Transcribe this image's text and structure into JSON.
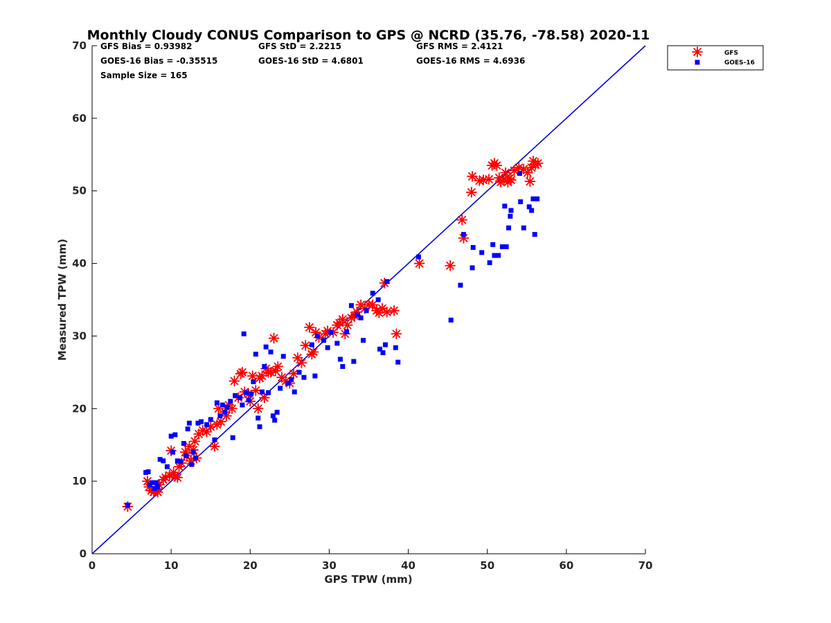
{
  "chart_data": {
    "type": "scatter",
    "title": "Monthly Cloudy CONUS Comparison to GPS @ NCRD (35.76, -78.58) 2020-11",
    "xlabel": "GPS TPW (mm)",
    "ylabel": "Measured TPW (mm)",
    "xlim": [
      0,
      70
    ],
    "ylim": [
      0,
      70
    ],
    "xticks": [
      "0",
      "10",
      "20",
      "30",
      "40",
      "50",
      "60",
      "70"
    ],
    "yticks": [
      "0",
      "10",
      "20",
      "30",
      "40",
      "50",
      "60",
      "70"
    ],
    "grid": false,
    "legend_position": "top-right, outside plot area",
    "stats": [
      [
        "GFS Bias = 0.93982",
        "GFS StD = 2.2215",
        "GFS RMS = 2.4121"
      ],
      [
        "GOES-16 Bias = -0.35515",
        "GOES-16 StD = 4.6801",
        "GOES-16 RMS = 4.6936"
      ],
      [
        "Sample Size = 165"
      ]
    ],
    "reference_line": {
      "x": [
        0,
        70
      ],
      "y": [
        0,
        70
      ],
      "color": "#0000dd"
    },
    "series": [
      {
        "name": "GFS",
        "marker": "asterisk",
        "color": "#ff0000",
        "points": [
          [
            4.5,
            6.5
          ],
          [
            7,
            10
          ],
          [
            7.2,
            9.2
          ],
          [
            7.5,
            8.7
          ],
          [
            7.8,
            8.5
          ],
          [
            8,
            8.8
          ],
          [
            8.3,
            8.5
          ],
          [
            8.5,
            9.5
          ],
          [
            9,
            10.2
          ],
          [
            9.3,
            10.5
          ],
          [
            9.8,
            10.8
          ],
          [
            10,
            14.2
          ],
          [
            10.3,
            11.2
          ],
          [
            10.5,
            10.7
          ],
          [
            10.8,
            10.5
          ],
          [
            11,
            12
          ],
          [
            11.3,
            12.5
          ],
          [
            11.8,
            14
          ],
          [
            12,
            13.5
          ],
          [
            12.3,
            14.8
          ],
          [
            12.5,
            12.8
          ],
          [
            12.8,
            14.3
          ],
          [
            13,
            15.5
          ],
          [
            13.2,
            13.2
          ],
          [
            13.5,
            16.5
          ],
          [
            14,
            17
          ],
          [
            14.5,
            16.8
          ],
          [
            15,
            17.5
          ],
          [
            15.5,
            14.8
          ],
          [
            15.8,
            17.8
          ],
          [
            16,
            20
          ],
          [
            16.3,
            18.2
          ],
          [
            16.8,
            19.5
          ],
          [
            17,
            19
          ],
          [
            17.3,
            20.5
          ],
          [
            17.7,
            20
          ],
          [
            18,
            23.8
          ],
          [
            18.5,
            21.5
          ],
          [
            18.8,
            24.8
          ],
          [
            19,
            25
          ],
          [
            19.3,
            22.3
          ],
          [
            19.8,
            22
          ],
          [
            20,
            21
          ],
          [
            20.3,
            24.5
          ],
          [
            20.7,
            22.5
          ],
          [
            21,
            20
          ],
          [
            21.2,
            24.2
          ],
          [
            21.5,
            24.5
          ],
          [
            21.8,
            21.5
          ],
          [
            22,
            25.5
          ],
          [
            22.3,
            25
          ],
          [
            22.6,
            25
          ],
          [
            23,
            29.7
          ],
          [
            23.2,
            25.2
          ],
          [
            23.5,
            25.8
          ],
          [
            24,
            24.3
          ],
          [
            24.5,
            23.8
          ],
          [
            25,
            23.5
          ],
          [
            25.5,
            24.8
          ],
          [
            26,
            27
          ],
          [
            26.5,
            26.3
          ],
          [
            27,
            28.7
          ],
          [
            27.5,
            31.2
          ],
          [
            27.8,
            27.5
          ],
          [
            28,
            27.8
          ],
          [
            28.3,
            30.5
          ],
          [
            28.7,
            29.8
          ],
          [
            29.5,
            30.3
          ],
          [
            29.8,
            30.7
          ],
          [
            30.5,
            30.5
          ],
          [
            31,
            31.5
          ],
          [
            31.3,
            31.8
          ],
          [
            31.7,
            32.3
          ],
          [
            32,
            30.3
          ],
          [
            32.3,
            31.5
          ],
          [
            32.8,
            32.5
          ],
          [
            33.2,
            32.8
          ],
          [
            33.5,
            33.3
          ],
          [
            34,
            34.3
          ],
          [
            34.5,
            33.8
          ],
          [
            35,
            34.3
          ],
          [
            35.5,
            34.3
          ],
          [
            36,
            33.5
          ],
          [
            36.3,
            33.2
          ],
          [
            36.7,
            33.8
          ],
          [
            37,
            37.3
          ],
          [
            37.3,
            33.3
          ],
          [
            38.2,
            33.5
          ],
          [
            38.5,
            30.3
          ],
          [
            41.4,
            40
          ],
          [
            45.3,
            39.7
          ],
          [
            46.8,
            46
          ],
          [
            47,
            43.5
          ],
          [
            48,
            49.8
          ],
          [
            48.1,
            52
          ],
          [
            49,
            51.4
          ],
          [
            49.5,
            51.5
          ],
          [
            50.2,
            51.6
          ],
          [
            50.6,
            53.5
          ],
          [
            50.9,
            53.8
          ],
          [
            51.2,
            53.5
          ],
          [
            51.5,
            51.8
          ],
          [
            51.7,
            51.2
          ],
          [
            52.1,
            51.5
          ],
          [
            52.3,
            52.5
          ],
          [
            52.6,
            51.2
          ],
          [
            52.8,
            51.7
          ],
          [
            53,
            51.5
          ],
          [
            53.4,
            52.8
          ],
          [
            54,
            53.2
          ],
          [
            54.6,
            53
          ],
          [
            55.1,
            52.5
          ],
          [
            55.4,
            51.3
          ],
          [
            55.6,
            53.2
          ],
          [
            55.8,
            54.1
          ],
          [
            56.1,
            53.6
          ],
          [
            56.4,
            53.8
          ]
        ]
      },
      {
        "name": "GOES-16",
        "marker": "square",
        "color": "#0000ff",
        "points": [
          [
            4.5,
            6.7
          ],
          [
            6.8,
            11.2
          ],
          [
            7.1,
            11.3
          ],
          [
            7.3,
            9.5
          ],
          [
            7.6,
            9.8
          ],
          [
            7.9,
            9
          ],
          [
            8.1,
            9.8
          ],
          [
            8.3,
            9.2
          ],
          [
            8.6,
            13
          ],
          [
            9,
            12.8
          ],
          [
            9.5,
            12
          ],
          [
            10,
            16.2
          ],
          [
            10.2,
            14
          ],
          [
            10.5,
            16.4
          ],
          [
            10.8,
            12.8
          ],
          [
            11.2,
            12.7
          ],
          [
            11.6,
            15.2
          ],
          [
            11.9,
            13.5
          ],
          [
            12.1,
            17.2
          ],
          [
            12.3,
            18
          ],
          [
            12.6,
            12.3
          ],
          [
            12.8,
            14
          ],
          [
            13.1,
            13.2
          ],
          [
            13.4,
            18
          ],
          [
            13.8,
            18.2
          ],
          [
            14.5,
            17.8
          ],
          [
            15,
            18.5
          ],
          [
            15.5,
            15.7
          ],
          [
            15.8,
            20.8
          ],
          [
            16.2,
            19
          ],
          [
            16.5,
            20.5
          ],
          [
            16.8,
            19.5
          ],
          [
            17.1,
            20.2
          ],
          [
            17.5,
            21
          ],
          [
            17.8,
            16
          ],
          [
            18.1,
            21.8
          ],
          [
            18.7,
            21.5
          ],
          [
            19,
            20.5
          ],
          [
            19.2,
            30.3
          ],
          [
            19.5,
            22.2
          ],
          [
            19.8,
            21.2
          ],
          [
            20.1,
            22
          ],
          [
            20.4,
            23.7
          ],
          [
            20.7,
            27.5
          ],
          [
            21,
            18.7
          ],
          [
            21.2,
            17.5
          ],
          [
            21.5,
            22.3
          ],
          [
            21.8,
            25.8
          ],
          [
            22,
            28.5
          ],
          [
            22.3,
            22.2
          ],
          [
            22.6,
            27.8
          ],
          [
            22.9,
            19
          ],
          [
            23.1,
            18.4
          ],
          [
            23.4,
            19.5
          ],
          [
            23.8,
            22.8
          ],
          [
            24.2,
            27.2
          ],
          [
            24.8,
            23.5
          ],
          [
            25.2,
            24
          ],
          [
            25.6,
            22.3
          ],
          [
            26.2,
            25
          ],
          [
            26.8,
            24.3
          ],
          [
            27.8,
            28.8
          ],
          [
            28.2,
            24.5
          ],
          [
            28.5,
            30
          ],
          [
            29.3,
            29.4
          ],
          [
            29.8,
            28.4
          ],
          [
            30.2,
            30.5
          ],
          [
            31,
            29
          ],
          [
            31.4,
            26.8
          ],
          [
            31.7,
            25.8
          ],
          [
            32.2,
            30.6
          ],
          [
            32.8,
            34.2
          ],
          [
            33.1,
            26.5
          ],
          [
            33.6,
            32.9
          ],
          [
            34,
            32.5
          ],
          [
            34.3,
            29.4
          ],
          [
            34.7,
            33.5
          ],
          [
            35.5,
            35.9
          ],
          [
            36.2,
            35
          ],
          [
            36.4,
            28.2
          ],
          [
            36.8,
            27.7
          ],
          [
            37.1,
            28.8
          ],
          [
            37.3,
            37.5
          ],
          [
            38.4,
            28.4
          ],
          [
            38.7,
            26.4
          ],
          [
            41.3,
            40.9
          ],
          [
            45.4,
            32.2
          ],
          [
            46.6,
            37
          ],
          [
            47,
            44
          ],
          [
            48.1,
            39.4
          ],
          [
            48.2,
            42.2
          ],
          [
            49.3,
            41.5
          ],
          [
            50.3,
            40.1
          ],
          [
            50.7,
            42.6
          ],
          [
            50.9,
            41.1
          ],
          [
            51.4,
            41.1
          ],
          [
            51.9,
            42.3
          ],
          [
            52.2,
            47.9
          ],
          [
            52.4,
            42.3
          ],
          [
            52.7,
            44.9
          ],
          [
            52.9,
            46.5
          ],
          [
            53,
            47.3
          ],
          [
            54.1,
            52.4
          ],
          [
            54.2,
            48.5
          ],
          [
            54.6,
            44.9
          ],
          [
            55.3,
            47.8
          ],
          [
            55.6,
            47.3
          ],
          [
            55.8,
            48.9
          ],
          [
            56,
            44
          ],
          [
            56.3,
            48.9
          ]
        ]
      }
    ]
  }
}
